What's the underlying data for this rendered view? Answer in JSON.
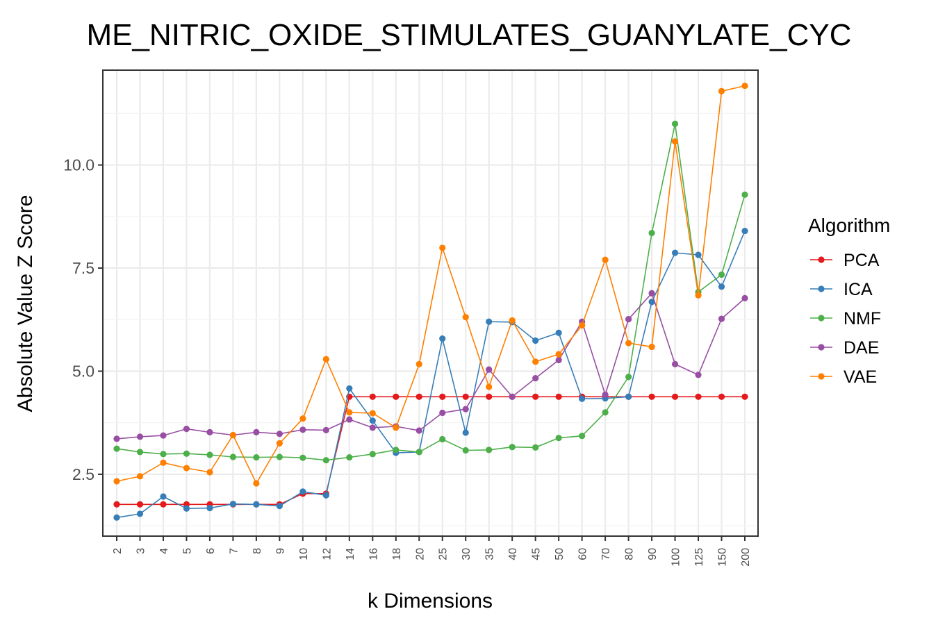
{
  "chart_data": {
    "type": "line",
    "title": "ME_NITRIC_OXIDE_STIMULATES_GUANYLATE_CYC",
    "xlabel": "k Dimensions",
    "ylabel": "Absolute Value Z Score",
    "legend_title": "Algorithm",
    "legend_position": "right",
    "grid": true,
    "ylim": [
      1.0,
      12.3
    ],
    "y_ticks": [
      2.5,
      5.0,
      7.5,
      10.0
    ],
    "y_tick_labels": [
      "2.5",
      "5.0",
      "7.5",
      "10.0"
    ],
    "categories": [
      "2",
      "3",
      "4",
      "5",
      "6",
      "7",
      "8",
      "9",
      "10",
      "12",
      "14",
      "16",
      "18",
      "20",
      "25",
      "30",
      "35",
      "40",
      "45",
      "50",
      "60",
      "70",
      "80",
      "90",
      "100",
      "125",
      "150",
      "200"
    ],
    "series": [
      {
        "name": "PCA",
        "color": "#e41a1c",
        "values": [
          1.77,
          1.77,
          1.77,
          1.77,
          1.77,
          1.77,
          1.77,
          1.77,
          2.03,
          2.03,
          4.38,
          4.38,
          4.38,
          4.38,
          4.38,
          4.38,
          4.38,
          4.38,
          4.38,
          4.38,
          4.38,
          4.38,
          4.38,
          4.38,
          4.38,
          4.38,
          4.38,
          4.38
        ]
      },
      {
        "name": "ICA",
        "color": "#377eb8",
        "values": [
          1.45,
          1.54,
          1.96,
          1.67,
          1.68,
          1.78,
          1.77,
          1.73,
          2.08,
          1.99,
          4.58,
          3.8,
          3.02,
          3.04,
          5.79,
          3.51,
          6.2,
          6.19,
          5.74,
          5.93,
          4.33,
          4.34,
          4.38,
          6.68,
          7.87,
          7.82,
          7.05,
          8.4
        ]
      },
      {
        "name": "NMF",
        "color": "#4daf4a",
        "values": [
          3.12,
          3.04,
          2.99,
          3.0,
          2.97,
          2.92,
          2.91,
          2.92,
          2.9,
          2.84,
          2.91,
          2.99,
          3.09,
          3.04,
          3.35,
          3.08,
          3.09,
          3.16,
          3.15,
          3.38,
          3.43,
          4.0,
          4.86,
          8.35,
          11.0,
          6.92,
          7.34,
          9.28
        ]
      },
      {
        "name": "DAE",
        "color": "#984ea3",
        "values": [
          3.36,
          3.41,
          3.44,
          3.6,
          3.52,
          3.45,
          3.52,
          3.48,
          3.58,
          3.57,
          3.83,
          3.63,
          3.66,
          3.56,
          3.99,
          4.08,
          5.04,
          4.38,
          4.83,
          5.27,
          6.2,
          4.43,
          6.26,
          6.89,
          5.17,
          4.91,
          6.27,
          6.77
        ]
      },
      {
        "name": "VAE",
        "color": "#ff7f00",
        "values": [
          2.33,
          2.45,
          2.78,
          2.65,
          2.55,
          3.45,
          2.28,
          3.25,
          3.85,
          5.29,
          4.0,
          3.98,
          3.63,
          5.17,
          7.99,
          6.31,
          4.62,
          6.23,
          5.23,
          5.41,
          6.11,
          7.7,
          5.68,
          5.59,
          10.57,
          6.84,
          11.79,
          11.92
        ]
      }
    ]
  }
}
